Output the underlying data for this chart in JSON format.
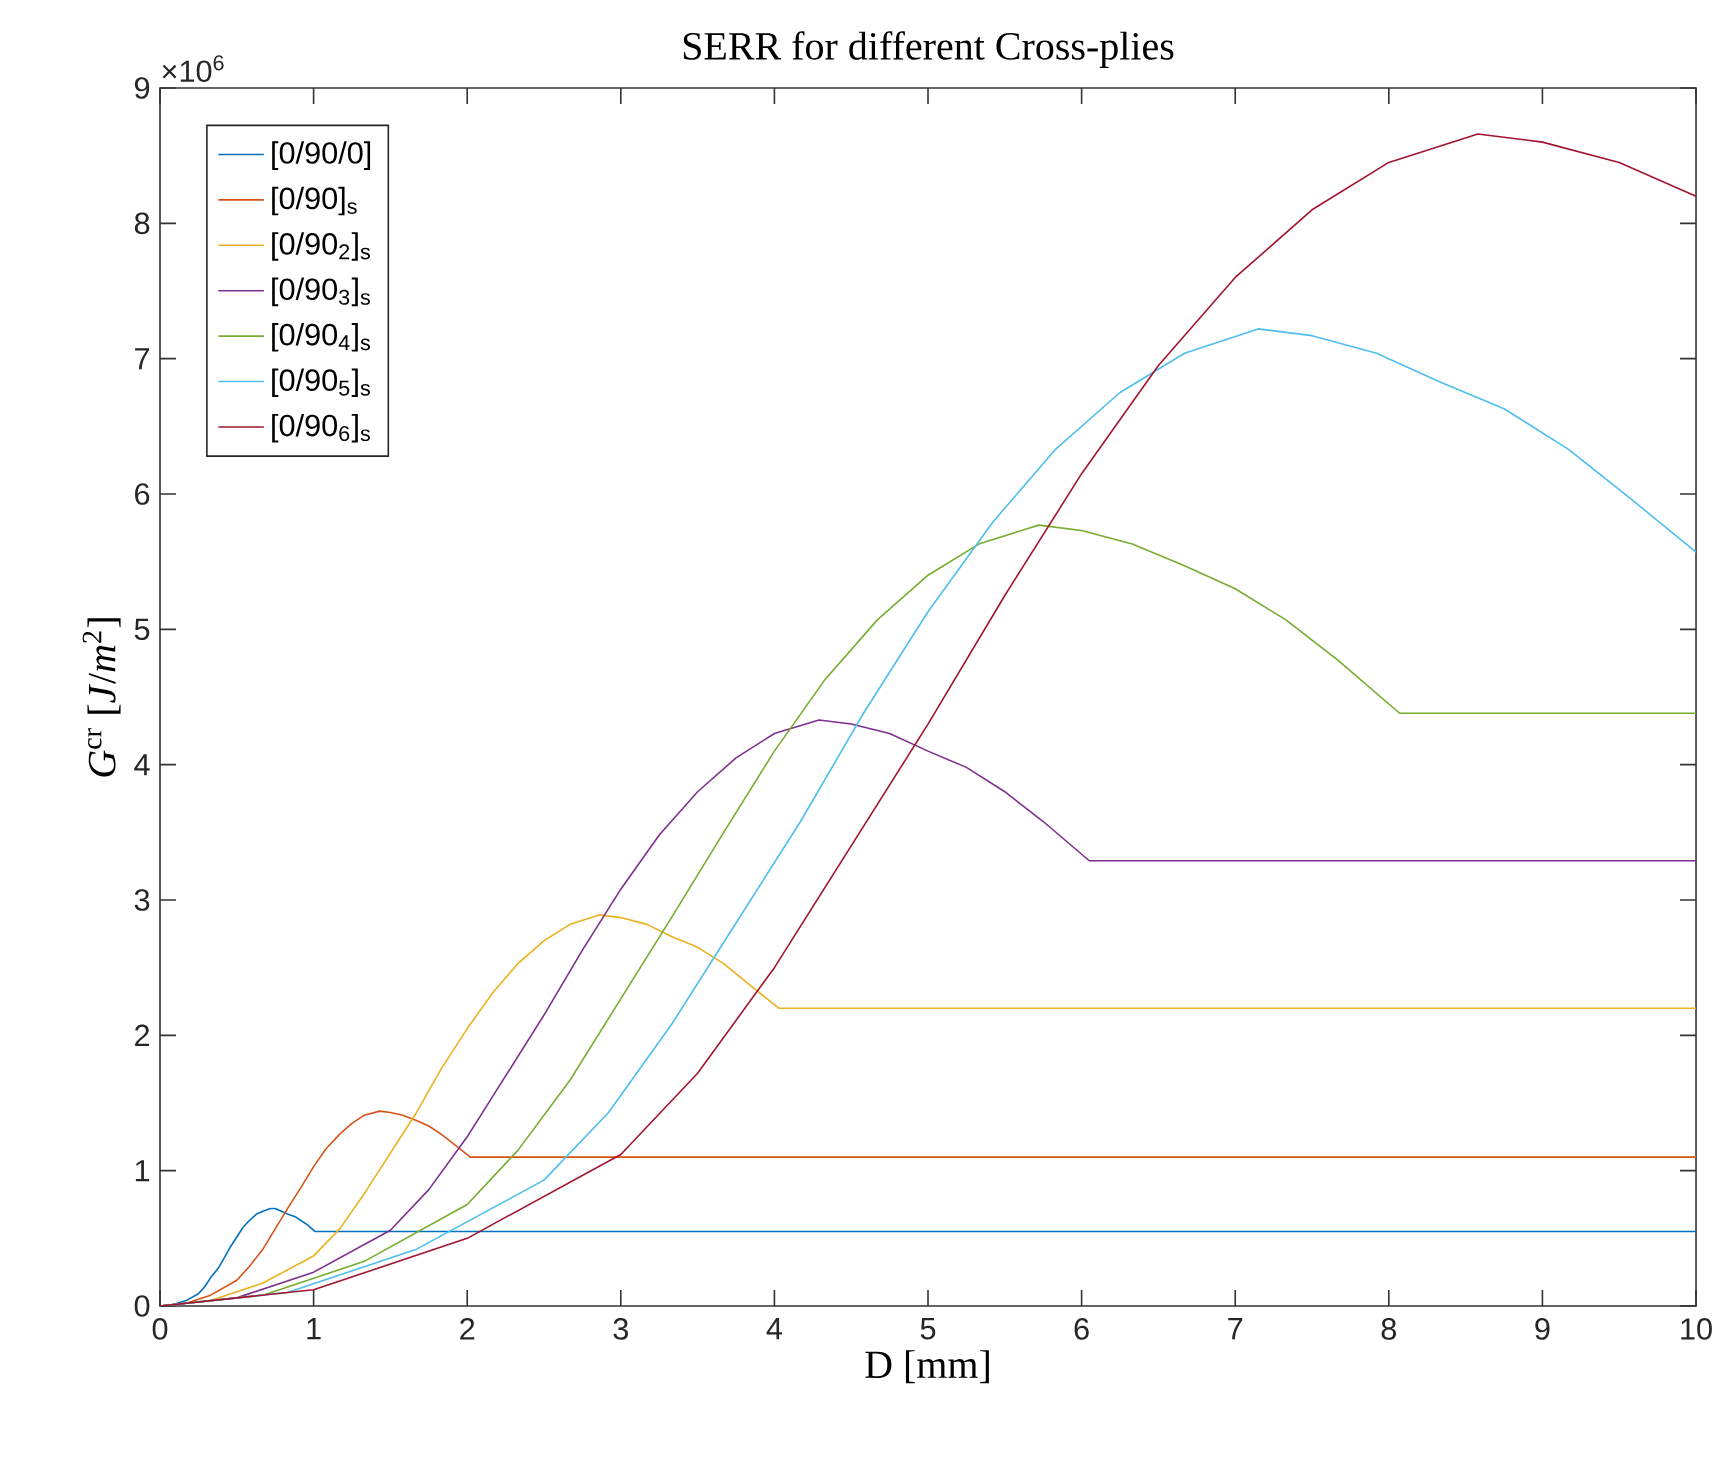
{
  "chart_data": {
    "type": "line",
    "title": "SERR for different Cross-plies",
    "xlabel": "D [mm]",
    "ylabel": "*G*$^{cr}$ [*J*/*m*$^{2}$]",
    "annotations": [
      "×10$^{6}$"
    ],
    "xlim": [
      0,
      10
    ],
    "ylim": [
      0,
      9
    ],
    "xticks": [
      0,
      1,
      2,
      3,
      4,
      5,
      6,
      7,
      8,
      9,
      10
    ],
    "yticks": [
      0,
      1,
      2,
      3,
      4,
      5,
      6,
      7,
      8,
      9
    ],
    "legend": "top left",
    "series": [
      {
        "name": "[0/90/0]",
        "color": "#0072bd",
        "x": [
          0,
          0.08,
          0.17,
          0.25,
          0.29,
          0.33,
          0.38,
          0.42,
          0.46,
          0.5,
          0.54,
          0.58,
          0.63,
          0.67,
          0.72,
          0.75,
          0.79,
          0.83,
          0.88,
          0.92,
          0.96,
          1.01,
          10
        ],
        "values": [
          0,
          0.01,
          0.04,
          0.09,
          0.14,
          0.21,
          0.28,
          0.36,
          0.44,
          0.51,
          0.58,
          0.63,
          0.68,
          0.7,
          0.72,
          0.72,
          0.7,
          0.68,
          0.66,
          0.63,
          0.6,
          0.55,
          0.55
        ]
      },
      {
        "name": "[0/90]$_{s}$",
        "color": "#d95319",
        "x": [
          0,
          0.17,
          0.33,
          0.5,
          0.58,
          0.67,
          0.75,
          0.83,
          0.92,
          1,
          1.08,
          1.17,
          1.25,
          1.33,
          1.43,
          1.5,
          1.58,
          1.67,
          1.75,
          1.83,
          1.92,
          2.02,
          10
        ],
        "values": [
          0,
          0.02,
          0.08,
          0.19,
          0.29,
          0.42,
          0.57,
          0.72,
          0.88,
          1.03,
          1.16,
          1.27,
          1.35,
          1.41,
          1.44,
          1.43,
          1.41,
          1.37,
          1.33,
          1.27,
          1.19,
          1.1,
          1.1
        ]
      },
      {
        "name": "[0/90$_{2}$]$_{s}$",
        "color": "#edb120",
        "x": [
          0,
          0.33,
          0.67,
          1,
          1.17,
          1.33,
          1.5,
          1.67,
          1.83,
          2,
          2.17,
          2.33,
          2.5,
          2.67,
          2.86,
          3,
          3.17,
          3.33,
          3.5,
          3.67,
          3.83,
          4.03,
          10
        ],
        "values": [
          0,
          0.04,
          0.17,
          0.37,
          0.57,
          0.83,
          1.13,
          1.43,
          1.75,
          2.05,
          2.32,
          2.53,
          2.7,
          2.82,
          2.89,
          2.87,
          2.82,
          2.73,
          2.65,
          2.53,
          2.38,
          2.2,
          2.2
        ]
      },
      {
        "name": "[0/90$_{3}$]$_{s}$",
        "color": "#7e2f8e",
        "x": [
          0,
          0.5,
          1,
          1.5,
          1.75,
          2,
          2.25,
          2.5,
          2.75,
          3,
          3.25,
          3.5,
          3.75,
          4,
          4.29,
          4.5,
          4.75,
          5,
          5.25,
          5.5,
          5.75,
          6.05,
          10
        ],
        "values": [
          0,
          0.06,
          0.25,
          0.56,
          0.86,
          1.25,
          1.7,
          2.15,
          2.63,
          3.08,
          3.48,
          3.8,
          4.05,
          4.23,
          4.33,
          4.3,
          4.23,
          4.1,
          3.98,
          3.8,
          3.58,
          3.29,
          3.29
        ]
      },
      {
        "name": "[0/90$_{4}$]$_{s}$",
        "color": "#77ac30",
        "x": [
          0,
          0.67,
          1.33,
          2,
          2.33,
          2.67,
          3,
          3.33,
          3.67,
          4,
          4.33,
          4.67,
          5,
          5.33,
          5.72,
          6,
          6.33,
          6.67,
          7,
          7.33,
          7.67,
          8.07,
          10
        ],
        "values": [
          0,
          0.08,
          0.33,
          0.75,
          1.15,
          1.67,
          2.27,
          2.87,
          3.5,
          4.1,
          4.63,
          5.07,
          5.4,
          5.63,
          5.77,
          5.73,
          5.63,
          5.47,
          5.3,
          5.07,
          4.77,
          4.38,
          4.38
        ]
      },
      {
        "name": "[0/90$_{5}$]$_{s}$",
        "color": "#4dbeee",
        "x": [
          0,
          0.83,
          1.67,
          2.5,
          2.92,
          3.33,
          3.75,
          4.17,
          4.58,
          5,
          5.42,
          5.83,
          6.25,
          6.67,
          7.15,
          7.5,
          7.92,
          8.33,
          8.75,
          9.17,
          9.58,
          10
        ],
        "values": [
          0,
          0.1,
          0.42,
          0.93,
          1.43,
          2.08,
          2.83,
          3.58,
          4.38,
          5.13,
          5.79,
          6.33,
          6.75,
          7.04,
          7.22,
          7.17,
          7.04,
          6.83,
          6.63,
          6.33,
          5.96,
          5.57
        ]
      },
      {
        "name": "[0/90$_{6}$]$_{s}$",
        "color": "#a2142f",
        "x": [
          0,
          1,
          2,
          3,
          3.5,
          4,
          4.5,
          5,
          5.5,
          6,
          6.5,
          7,
          7.5,
          8,
          8.58,
          9,
          9.5,
          10
        ],
        "values": [
          0,
          0.12,
          0.5,
          1.12,
          1.72,
          2.5,
          3.4,
          4.3,
          5.25,
          6.15,
          6.95,
          7.6,
          8.1,
          8.45,
          8.66,
          8.6,
          8.45,
          8.2
        ]
      }
    ]
  }
}
